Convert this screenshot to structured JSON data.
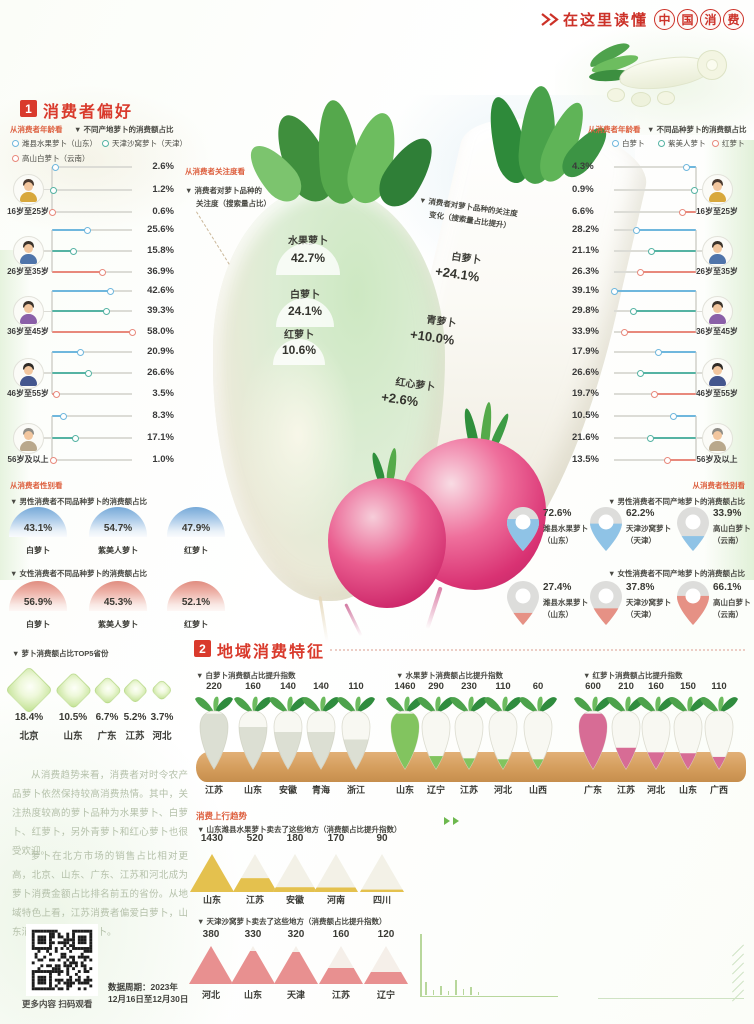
{
  "header": {
    "brand_prefix": "在这里读懂",
    "brand_circles": [
      "中",
      "国",
      "消",
      "费"
    ]
  },
  "section1": {
    "num": "1",
    "title": "消费者偏好",
    "age_left": {
      "subhead": "从消费者年龄看",
      "caption": "▼ 不同产地萝卜的消费额占比",
      "legend": [
        {
          "label": "潍县水果萝卜（山东）",
          "color": "#6fb7dd"
        },
        {
          "label": "天津沙窝萝卜（天津）",
          "color": "#55b3a3"
        },
        {
          "label": "高山白萝卜（云南）",
          "color": "#e8897c"
        }
      ],
      "groups": [
        {
          "age": "16岁至25岁",
          "values": [
            "2.6%",
            "1.2%",
            "0.6%"
          ]
        },
        {
          "age": "26岁至35岁",
          "values": [
            "25.6%",
            "15.8%",
            "36.9%"
          ]
        },
        {
          "age": "36岁至45岁",
          "values": [
            "42.6%",
            "39.3%",
            "58.0%"
          ]
        },
        {
          "age": "46岁至55岁",
          "values": [
            "20.9%",
            "26.6%",
            "3.5%"
          ]
        },
        {
          "age": "56岁及以上",
          "values": [
            "8.3%",
            "17.1%",
            "1.0%"
          ]
        }
      ]
    },
    "age_right": {
      "subhead": "从消费者年龄看",
      "caption": "▼ 不同品种萝卜的消费额占比",
      "legend": [
        {
          "label": "白萝卜",
          "color": "#6fb7dd"
        },
        {
          "label": "紫美人萝卜",
          "color": "#55b3a3"
        },
        {
          "label": "红萝卜",
          "color": "#e8897c"
        }
      ],
      "groups": [
        {
          "age": "16岁至25岁",
          "values": [
            "4.3%",
            "0.9%",
            "6.6%"
          ]
        },
        {
          "age": "26岁至35岁",
          "values": [
            "28.2%",
            "21.1%",
            "26.3%"
          ]
        },
        {
          "age": "36岁至45岁",
          "values": [
            "39.1%",
            "29.8%",
            "33.9%"
          ]
        },
        {
          "age": "46岁至55岁",
          "values": [
            "17.9%",
            "26.6%",
            "19.7%"
          ]
        },
        {
          "age": "56岁及以上",
          "values": [
            "10.5%",
            "21.6%",
            "13.5%"
          ]
        }
      ]
    },
    "attention": {
      "subhead": "从消费者关注度看",
      "caption_line1": "▼ 消费者对萝卜品种的",
      "caption_line2": "关注度（搜索量占比）",
      "items": [
        {
          "name": "水果萝卜",
          "value": "42.7%"
        },
        {
          "name": "白萝卜",
          "value": "24.1%"
        },
        {
          "name": "红萝卜",
          "value": "10.6%"
        }
      ]
    },
    "attention_change": {
      "caption_line1": "▼ 消费者对萝卜品种的关注度",
      "caption_line2": "变化（搜索量占比提升）",
      "items": [
        {
          "name": "白萝卜",
          "value": "+24.1%"
        },
        {
          "name": "青萝卜",
          "value": "+10.0%"
        },
        {
          "name": "红心萝卜",
          "value": "+2.6%"
        }
      ]
    },
    "gender_variety": {
      "subhead": "从消费者性别看",
      "male_caption": "▼ 男性消费者不同品种萝卜的消费额占比",
      "male": [
        {
          "name": "白萝卜",
          "value": "43.1%"
        },
        {
          "name": "紫美人萝卜",
          "value": "54.7%"
        },
        {
          "name": "红萝卜",
          "value": "47.9%"
        }
      ],
      "female_caption": "▼ 女性消费者不同品种萝卜的消费额占比",
      "female": [
        {
          "name": "白萝卜",
          "value": "56.9%"
        },
        {
          "name": "紫美人萝卜",
          "value": "45.3%"
        },
        {
          "name": "红萝卜",
          "value": "52.1%"
        }
      ]
    },
    "gender_origin": {
      "subhead": "从消费者性别看",
      "male_caption": "▼ 男性消费者不同产地萝卜的消费额占比",
      "male": [
        {
          "value": "72.6%",
          "name": "潍县水果萝卜",
          "origin": "（山东）"
        },
        {
          "value": "62.2%",
          "name": "天津沙窝萝卜",
          "origin": "（天津）"
        },
        {
          "value": "33.9%",
          "name": "高山白萝卜",
          "origin": "（云南）"
        }
      ],
      "female_caption": "▼ 女性消费者不同产地萝卜的消费额占比",
      "female": [
        {
          "value": "27.4%",
          "name": "潍县水果萝卜",
          "origin": "（山东）"
        },
        {
          "value": "37.8%",
          "name": "天津沙窝萝卜",
          "origin": "（天津）"
        },
        {
          "value": "66.1%",
          "name": "高山白萝卜",
          "origin": "（云南）"
        }
      ]
    },
    "top5": {
      "caption": "▼ 萝卜消费额占比TOP5省份",
      "items": [
        {
          "value": "18.4%",
          "province": "北京"
        },
        {
          "value": "10.5%",
          "province": "山东"
        },
        {
          "value": "6.7%",
          "province": "广东"
        },
        {
          "value": "5.2%",
          "province": "江苏"
        },
        {
          "value": "3.7%",
          "province": "河北"
        }
      ]
    }
  },
  "section2": {
    "num": "2",
    "title": "地域消费特征",
    "charts": [
      {
        "caption": "▼ 白萝卜消费额占比提升指数",
        "items": [
          {
            "value": "220",
            "province": "江苏"
          },
          {
            "value": "160",
            "province": "山东"
          },
          {
            "value": "140",
            "province": "安徽"
          },
          {
            "value": "140",
            "province": "青海"
          },
          {
            "value": "110",
            "province": "浙江"
          }
        ]
      },
      {
        "caption": "▼ 水果萝卜消费额占比提升指数",
        "items": [
          {
            "value": "1460",
            "province": "山东"
          },
          {
            "value": "290",
            "province": "辽宁"
          },
          {
            "value": "230",
            "province": "江苏"
          },
          {
            "value": "110",
            "province": "河北"
          },
          {
            "value": "60",
            "province": "山西"
          }
        ]
      },
      {
        "caption": "▼ 红萝卜消费额占比提升指数",
        "items": [
          {
            "value": "600",
            "province": "广东"
          },
          {
            "value": "210",
            "province": "江苏"
          },
          {
            "value": "160",
            "province": "河北"
          },
          {
            "value": "150",
            "province": "山东"
          },
          {
            "value": "110",
            "province": "广西"
          }
        ]
      }
    ],
    "trend": {
      "subhead": "消费上行趋势",
      "rows": [
        {
          "caption": "▼ 山东潍县水果萝卜卖去了这些地方（消费额占比提升指数）",
          "items": [
            {
              "value": "1430",
              "province": "山东"
            },
            {
              "value": "520",
              "province": "江苏"
            },
            {
              "value": "180",
              "province": "安徽"
            },
            {
              "value": "170",
              "province": "河南"
            },
            {
              "value": "90",
              "province": "四川"
            }
          ]
        },
        {
          "caption": "▼ 天津沙窝萝卜卖去了这些地方（消费额占比提升指数）",
          "items": [
            {
              "value": "380",
              "province": "河北"
            },
            {
              "value": "330",
              "province": "山东"
            },
            {
              "value": "320",
              "province": "天津"
            },
            {
              "value": "160",
              "province": "江苏"
            },
            {
              "value": "120",
              "province": "辽宁"
            }
          ]
        }
      ]
    }
  },
  "commentary": {
    "p1": "从消费趋势来看，消费者对时令农产品萝卜依然保持较高消费热情。其中，关注热度较高的萝卜品种为水果萝卜、白萝卜、红萝卜，另外青萝卜和红心萝卜也很受欢迎。",
    "p2": "萝卜在北方市场的销售占比相对更高，北京、山东、广东、江苏和河北成为萝卜消费金额占比排名前五的省份。从地域特色上看，江苏消费者偏爱白萝卜，山东消费者更爱水果萝卜。"
  },
  "footer": {
    "qr_caption": "更多内容 扫码观看",
    "period_line1": "数据周期：2023年",
    "period_line2": "12月16日至12月30日"
  },
  "chart_data": [
    {
      "type": "bar",
      "title": "不同产地萝卜的消费额占比（按消费者年龄）",
      "unit": "%",
      "categories": [
        "16岁至25岁",
        "26岁至35岁",
        "36岁至45岁",
        "46岁至55岁",
        "56岁及以上"
      ],
      "series": [
        {
          "name": "潍县水果萝卜（山东）",
          "values": [
            2.6,
            25.6,
            42.6,
            20.9,
            8.3
          ]
        },
        {
          "name": "天津沙窝萝卜（天津）",
          "values": [
            1.2,
            15.8,
            39.3,
            26.6,
            17.1
          ]
        },
        {
          "name": "高山白萝卜（云南）",
          "values": [
            0.6,
            36.9,
            58.0,
            3.5,
            1.0
          ]
        }
      ]
    },
    {
      "type": "bar",
      "title": "不同品种萝卜的消费额占比（按消费者年龄）",
      "unit": "%",
      "categories": [
        "16岁至25岁",
        "26岁至35岁",
        "36岁至45岁",
        "46岁至55岁",
        "56岁及以上"
      ],
      "series": [
        {
          "name": "白萝卜",
          "values": [
            4.3,
            28.2,
            39.1,
            17.9,
            10.5
          ]
        },
        {
          "name": "紫美人萝卜",
          "values": [
            0.9,
            21.1,
            29.8,
            26.6,
            21.6
          ]
        },
        {
          "name": "红萝卜",
          "values": [
            6.6,
            26.3,
            33.9,
            19.7,
            13.5
          ]
        }
      ]
    },
    {
      "type": "bar",
      "title": "消费者对萝卜品种的关注度（搜索量占比）",
      "unit": "%",
      "categories": [
        "水果萝卜",
        "白萝卜",
        "红萝卜"
      ],
      "values": [
        42.7,
        24.1,
        10.6
      ]
    },
    {
      "type": "bar",
      "title": "消费者对萝卜品种的关注度变化（搜索量占比提升）",
      "unit": "%",
      "categories": [
        "白萝卜",
        "青萝卜",
        "红心萝卜"
      ],
      "values": [
        24.1,
        10.0,
        2.6
      ]
    },
    {
      "type": "bar",
      "title": "男性消费者不同品种萝卜的消费额占比",
      "unit": "%",
      "categories": [
        "白萝卜",
        "紫美人萝卜",
        "红萝卜"
      ],
      "values": [
        43.1,
        54.7,
        47.9
      ]
    },
    {
      "type": "bar",
      "title": "女性消费者不同品种萝卜的消费额占比",
      "unit": "%",
      "categories": [
        "白萝卜",
        "紫美人萝卜",
        "红萝卜"
      ],
      "values": [
        56.9,
        45.3,
        52.1
      ]
    },
    {
      "type": "bar",
      "title": "男性消费者不同产地萝卜的消费额占比",
      "unit": "%",
      "categories": [
        "潍县水果萝卜（山东）",
        "天津沙窝萝卜（天津）",
        "高山白萝卜（云南）"
      ],
      "values": [
        72.6,
        62.2,
        33.9
      ]
    },
    {
      "type": "bar",
      "title": "女性消费者不同产地萝卜的消费额占比",
      "unit": "%",
      "categories": [
        "潍县水果萝卜（山东）",
        "天津沙窝萝卜（天津）",
        "高山白萝卜（云南）"
      ],
      "values": [
        27.4,
        37.8,
        66.1
      ]
    },
    {
      "type": "bar",
      "title": "萝卜消费额占比TOP5省份",
      "unit": "%",
      "categories": [
        "北京",
        "山东",
        "广东",
        "江苏",
        "河北"
      ],
      "values": [
        18.4,
        10.5,
        6.7,
        5.2,
        3.7
      ]
    },
    {
      "type": "bar",
      "title": "白萝卜消费额占比提升指数",
      "categories": [
        "江苏",
        "山东",
        "安徽",
        "青海",
        "浙江"
      ],
      "values": [
        220,
        160,
        140,
        140,
        110
      ]
    },
    {
      "type": "bar",
      "title": "水果萝卜消费额占比提升指数",
      "categories": [
        "山东",
        "辽宁",
        "江苏",
        "河北",
        "山西"
      ],
      "values": [
        1460,
        290,
        230,
        110,
        60
      ]
    },
    {
      "type": "bar",
      "title": "红萝卜消费额占比提升指数",
      "categories": [
        "广东",
        "江苏",
        "河北",
        "山东",
        "广西"
      ],
      "values": [
        600,
        210,
        160,
        150,
        110
      ]
    },
    {
      "type": "bar",
      "title": "山东潍县水果萝卜卖去了这些地方（消费额占比提升指数）",
      "categories": [
        "山东",
        "江苏",
        "安徽",
        "河南",
        "四川"
      ],
      "values": [
        1430,
        520,
        180,
        170,
        90
      ]
    },
    {
      "type": "bar",
      "title": "天津沙窝萝卜卖去了这些地方（消费额占比提升指数）",
      "categories": [
        "河北",
        "山东",
        "天津",
        "江苏",
        "辽宁"
      ],
      "values": [
        380,
        330,
        320,
        160,
        120
      ]
    }
  ]
}
